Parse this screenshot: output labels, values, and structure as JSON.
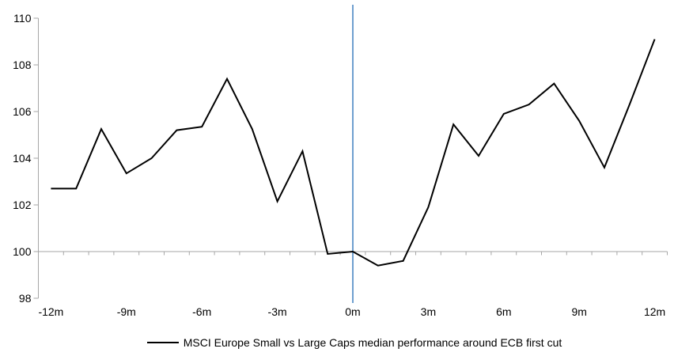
{
  "chart_data": {
    "type": "line",
    "title": "",
    "xlabel": "",
    "ylabel": "",
    "legend_position": "bottom",
    "grid": "baseline-only",
    "ylim": [
      98,
      110
    ],
    "ytick_step": 2,
    "xlim_months": [
      -12,
      12
    ],
    "baseline_value": 100,
    "axis_color": "#a6a6a6",
    "series": [
      {
        "name": "MSCI Europe Small vs Large Caps median performance around ECB first cut",
        "color": "#000000",
        "months": [
          -12,
          -11,
          -10,
          -9,
          -8,
          -7,
          -6,
          -5,
          -4,
          -3,
          -2,
          -1,
          0,
          1,
          2,
          3,
          4,
          5,
          6,
          7,
          8,
          9,
          10,
          11,
          12
        ],
        "values": [
          102.7,
          102.7,
          105.25,
          103.35,
          104.0,
          105.2,
          105.35,
          107.4,
          105.25,
          102.15,
          104.3,
          99.9,
          100.0,
          99.4,
          99.6,
          101.9,
          105.45,
          104.1,
          105.9,
          106.3,
          107.2,
          105.6,
          103.6,
          106.3,
          109.1
        ]
      }
    ],
    "yticks": [
      98,
      100,
      102,
      104,
      106,
      108,
      110
    ],
    "xticks": [
      {
        "m": -12,
        "label": "-12m"
      },
      {
        "m": -9,
        "label": "-9m"
      },
      {
        "m": -6,
        "label": "-6m"
      },
      {
        "m": -3,
        "label": "-3m"
      },
      {
        "m": 0,
        "label": "0m"
      },
      {
        "m": 3,
        "label": "3m"
      },
      {
        "m": 6,
        "label": "6m"
      },
      {
        "m": 9,
        "label": "9m"
      },
      {
        "m": 12,
        "label": "12m"
      }
    ],
    "event_line": {
      "m": 0,
      "color": "#6f9fcf"
    }
  }
}
